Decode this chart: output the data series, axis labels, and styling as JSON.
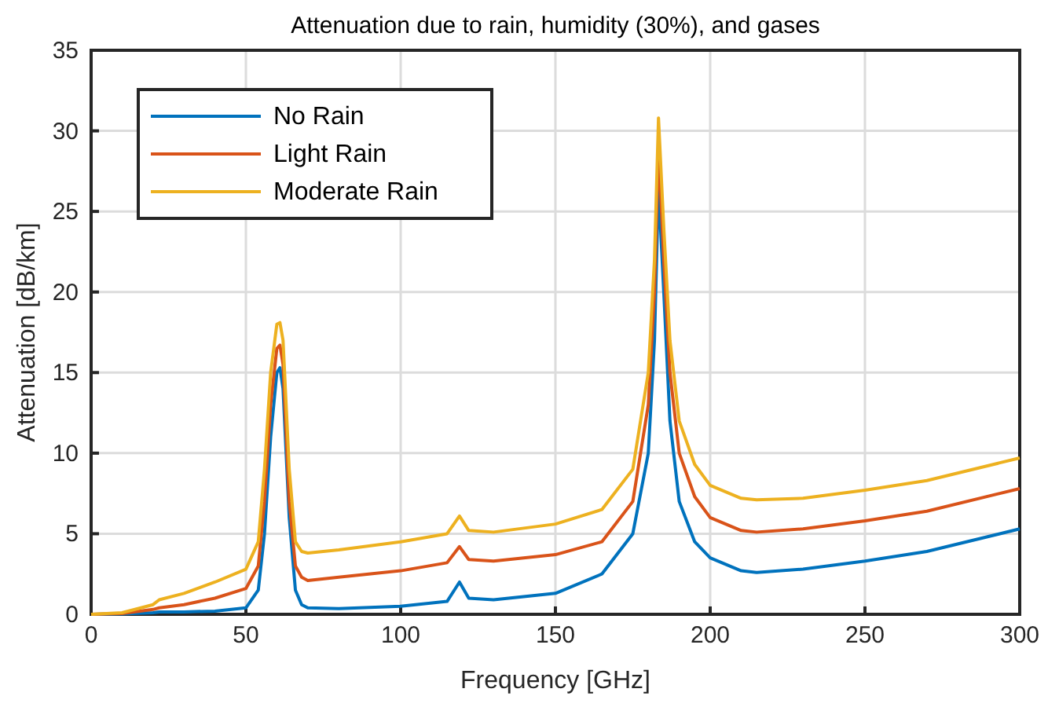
{
  "chart_data": {
    "type": "line",
    "title": "Attenuation due to rain, humidity (30%), and gases",
    "xlabel": "Frequency [GHz]",
    "ylabel": "Attenuation [dB/km]",
    "x": [
      0,
      10,
      20,
      22,
      30,
      40,
      50,
      54,
      56,
      58,
      60,
      61,
      62,
      64,
      66,
      68,
      70,
      80,
      100,
      115,
      119,
      122,
      130,
      150,
      165,
      175,
      180,
      182,
      183.3,
      185,
      187,
      190,
      195,
      200,
      210,
      215,
      230,
      250,
      270,
      300
    ],
    "series": [
      {
        "name": "No Rain",
        "color": "#0072bd",
        "values": [
          0,
          0.02,
          0.1,
          0.15,
          0.15,
          0.2,
          0.4,
          1.5,
          5,
          11,
          15,
          15.3,
          14,
          6,
          1.5,
          0.6,
          0.4,
          0.35,
          0.5,
          0.8,
          2.0,
          1.0,
          0.9,
          1.3,
          2.5,
          5,
          10,
          17,
          26.5,
          20,
          12,
          7,
          4.5,
          3.5,
          2.7,
          2.6,
          2.8,
          3.3,
          3.9,
          5.3
        ]
      },
      {
        "name": "Light Rain",
        "color": "#d95319",
        "values": [
          0,
          0.05,
          0.3,
          0.4,
          0.6,
          1.0,
          1.6,
          3,
          7,
          13,
          16.5,
          16.7,
          15.5,
          7,
          3,
          2.3,
          2.1,
          2.3,
          2.7,
          3.2,
          4.2,
          3.4,
          3.3,
          3.7,
          4.5,
          7,
          13,
          20,
          29,
          22,
          15,
          10,
          7.3,
          6,
          5.2,
          5.1,
          5.3,
          5.8,
          6.4,
          7.8
        ]
      },
      {
        "name": "Moderate Rain",
        "color": "#edb120",
        "values": [
          0,
          0.1,
          0.6,
          0.9,
          1.3,
          2.0,
          2.8,
          4.5,
          9,
          15,
          18,
          18.1,
          17,
          9,
          4.5,
          3.9,
          3.8,
          4.0,
          4.5,
          5.0,
          6.1,
          5.2,
          5.1,
          5.6,
          6.5,
          9,
          15,
          22,
          30.8,
          24,
          17,
          12,
          9.3,
          8,
          7.2,
          7.1,
          7.2,
          7.7,
          8.3,
          9.7
        ]
      }
    ],
    "xlim": [
      0,
      300
    ],
    "xticks": [
      0,
      50,
      100,
      150,
      200,
      250,
      300
    ],
    "ylim": [
      0,
      35
    ],
    "yticks": [
      0,
      5,
      10,
      15,
      20,
      25,
      30,
      35
    ],
    "grid": true,
    "legend": "top left",
    "line_style": "solid",
    "marker": "none"
  }
}
